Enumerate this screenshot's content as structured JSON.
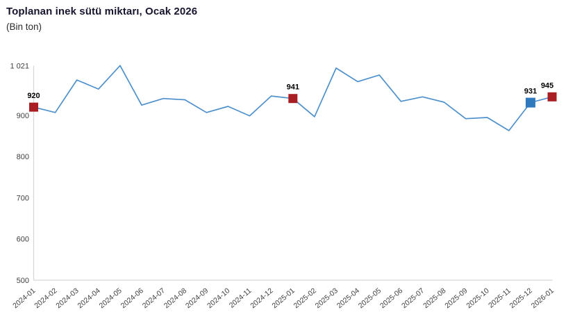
{
  "header": {
    "title": "Toplanan inek sütü miktarı, Ocak 2026",
    "subtitle": "(Bin ton)"
  },
  "colors": {
    "line": "#4e90cc",
    "marker_red": "#a91e22",
    "marker_blue": "#2e78bd",
    "axis_line": "#d8d8d8",
    "tick_label": "#404040",
    "data_label": "#000000"
  },
  "chart_data": {
    "type": "line",
    "title": "Toplanan inek sütü miktarı, Ocak 2026",
    "subtitle": "(Bin ton)",
    "unit": "Bin ton",
    "x": [
      "2024-01",
      "2024-02",
      "2024-03",
      "2024-04",
      "2024-05",
      "2024-06",
      "2024-07",
      "2024-08",
      "2024-09",
      "2024-10",
      "2024-11",
      "2024-12",
      "2025-01",
      "2025-02",
      "2025-03",
      "2025-04",
      "2025-05",
      "2025-06",
      "2025-07",
      "2025-08",
      "2025-09",
      "2025-10",
      "2025-11",
      "2025-12",
      "2026-01"
    ],
    "values": [
      920,
      907,
      986,
      964,
      1021,
      925,
      941,
      938,
      907,
      922,
      899,
      947,
      941,
      897,
      1015,
      982,
      998,
      934,
      945,
      932,
      892,
      895,
      863,
      931,
      945
    ],
    "ylim": [
      500,
      1021
    ],
    "yticks": [
      {
        "label": "1 021",
        "value": 1021
      },
      {
        "label": "900",
        "value": 900
      },
      {
        "label": "800",
        "value": 800
      },
      {
        "label": "700",
        "value": 700
      },
      {
        "label": "600",
        "value": 600
      },
      {
        "label": "500",
        "value": 500
      }
    ],
    "grid": false,
    "legend": "none",
    "x_label_rotation": -40,
    "highlighted_points": [
      {
        "x": "2024-01",
        "value": 920,
        "label": "920",
        "color": "red",
        "label_dx": 0
      },
      {
        "x": "2025-01",
        "value": 941,
        "label": "941",
        "color": "red",
        "label_dx": 0
      },
      {
        "x": "2025-12",
        "value": 931,
        "label": "931",
        "color": "blue",
        "label_dx": 0
      },
      {
        "x": "2026-01",
        "value": 945,
        "label": "945",
        "color": "red",
        "label_dx": -7
      }
    ]
  }
}
